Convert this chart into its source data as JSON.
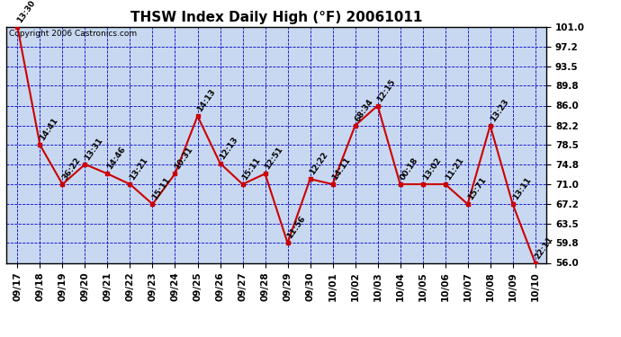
{
  "title": "THSW Index Daily High (°F) 20061011",
  "copyright": "Copyright 2006 Castronics.com",
  "background_color": "#ffffff",
  "plot_bg_color": "#c8d8f0",
  "line_color": "#cc0000",
  "marker_color": "#cc0000",
  "grid_color": "#0000cc",
  "x_labels": [
    "09/17",
    "09/18",
    "09/19",
    "09/20",
    "09/21",
    "09/22",
    "09/23",
    "09/24",
    "09/25",
    "09/26",
    "09/27",
    "09/28",
    "09/29",
    "09/30",
    "10/01",
    "10/02",
    "10/03",
    "10/04",
    "10/05",
    "10/06",
    "10/07",
    "10/08",
    "10/09",
    "10/10"
  ],
  "y_values": [
    101.0,
    78.5,
    71.0,
    74.8,
    73.0,
    71.0,
    67.2,
    73.0,
    84.0,
    75.0,
    71.0,
    73.0,
    59.8,
    72.0,
    71.0,
    82.2,
    86.0,
    71.0,
    71.0,
    71.0,
    67.2,
    82.2,
    67.2,
    56.0
  ],
  "point_labels": [
    "13:30",
    "14:41",
    "36:22",
    "13:31",
    "14:46",
    "13:21",
    "15:11",
    "10:31",
    "14:13",
    "12:13",
    "15:11",
    "12:51",
    "11:56",
    "12:22",
    "14:11",
    "68:34",
    "12:15",
    "00:18",
    "13:02",
    "11:21",
    "15:71",
    "13:23",
    "13:11",
    "22:11"
  ],
  "ylim_min": 56.0,
  "ylim_max": 101.0,
  "yticks": [
    56.0,
    59.8,
    63.5,
    67.2,
    71.0,
    74.8,
    78.5,
    82.2,
    86.0,
    89.8,
    93.5,
    97.2,
    101.0
  ],
  "title_fontsize": 11,
  "axis_fontsize": 7.5,
  "label_fontsize": 6.5,
  "copyright_fontsize": 6.5
}
